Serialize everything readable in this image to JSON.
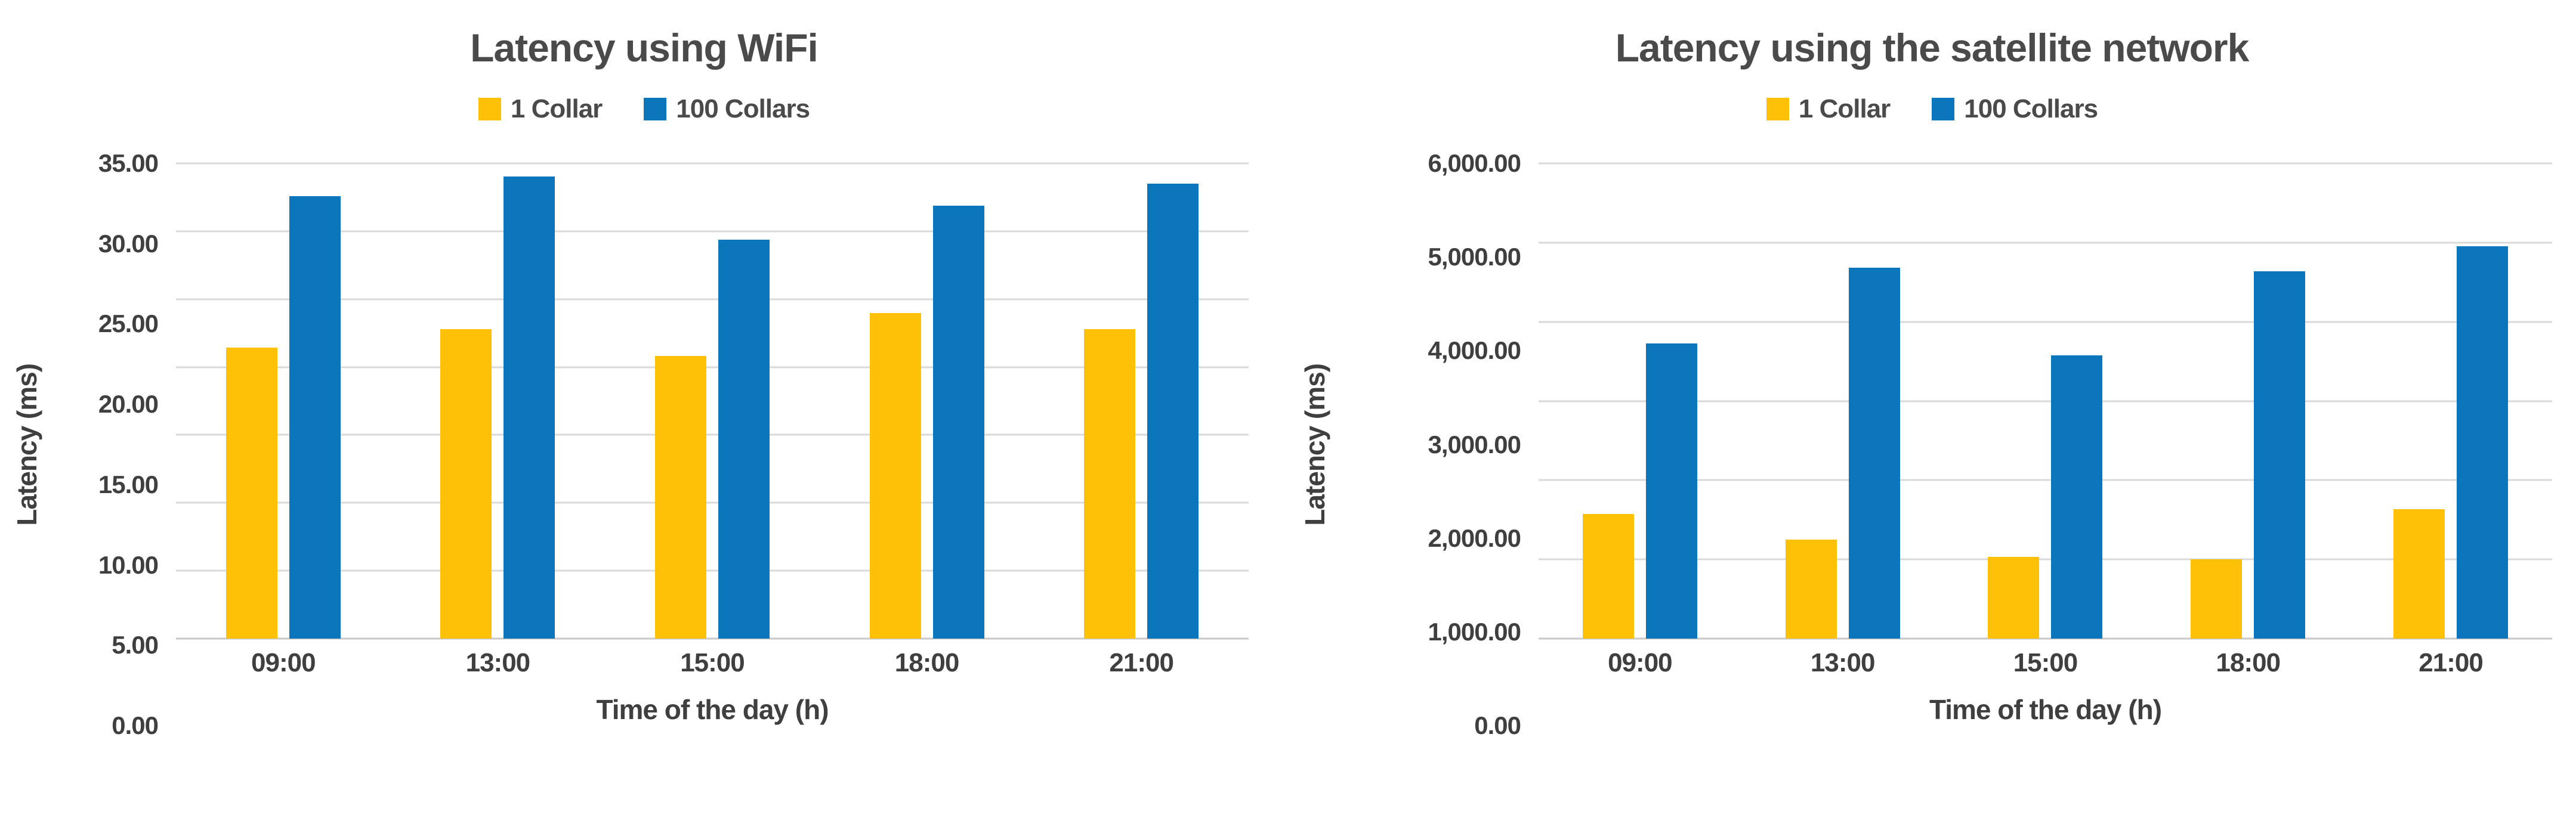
{
  "colors": {
    "series_1_collar": "#FFC107",
    "series_100_collars": "#0B76BC",
    "gridline": "#D9D9D9",
    "text": "#4A4A4A"
  },
  "chart_data": [
    {
      "type": "bar",
      "title": "Latency using WiFi",
      "xlabel": "Time of the day (h)",
      "ylabel": "Latency (ms)",
      "categories": [
        "09:00",
        "13:00",
        "15:00",
        "18:00",
        "21:00"
      ],
      "series": [
        {
          "name": "1 Collar",
          "color": "#FFC107",
          "values": [
            21.45,
            22.78,
            20.8,
            24.0,
            22.8
          ]
        },
        {
          "name": "100 Collars",
          "color": "#0B76BC",
          "values": [
            32.6,
            34.05,
            29.4,
            31.9,
            33.5
          ]
        }
      ],
      "ylim": [
        0,
        35
      ],
      "grid": true,
      "legend_position": "top",
      "y_ticks": [
        {
          "label": "35.00",
          "value": 35
        },
        {
          "label": "30.00",
          "value": 30
        },
        {
          "label": "25.00",
          "value": 25
        },
        {
          "label": "20.00",
          "value": 20
        },
        {
          "label": "15.00",
          "value": 15
        },
        {
          "label": "10.00",
          "value": 10
        },
        {
          "label": "5.00",
          "value": 5
        },
        {
          "label": "0.00",
          "value": 0
        }
      ]
    },
    {
      "type": "bar",
      "title": "Latency using the satellite network",
      "xlabel": "Time of the day (h)",
      "ylabel": "Latency (ms)",
      "categories": [
        "09:00",
        "13:00",
        "15:00",
        "18:00",
        "21:00"
      ],
      "series": [
        {
          "name": "1 Collar",
          "color": "#FFC107",
          "values": [
            1575,
            1250,
            1035,
            1005,
            1635
          ]
        },
        {
          "name": "100 Collars",
          "color": "#0B76BC",
          "values": [
            3725,
            4680,
            3575,
            4640,
            4950
          ]
        }
      ],
      "ylim": [
        0,
        6000
      ],
      "grid": true,
      "legend_position": "top",
      "y_ticks": [
        {
          "label": "6,000.00",
          "value": 6000
        },
        {
          "label": "5,000.00",
          "value": 5000
        },
        {
          "label": "4,000.00",
          "value": 4000
        },
        {
          "label": "3,000.00",
          "value": 3000
        },
        {
          "label": "2,000.00",
          "value": 2000
        },
        {
          "label": "1,000.00",
          "value": 1000
        },
        {
          "label": "0.00",
          "value": 0
        }
      ]
    }
  ]
}
